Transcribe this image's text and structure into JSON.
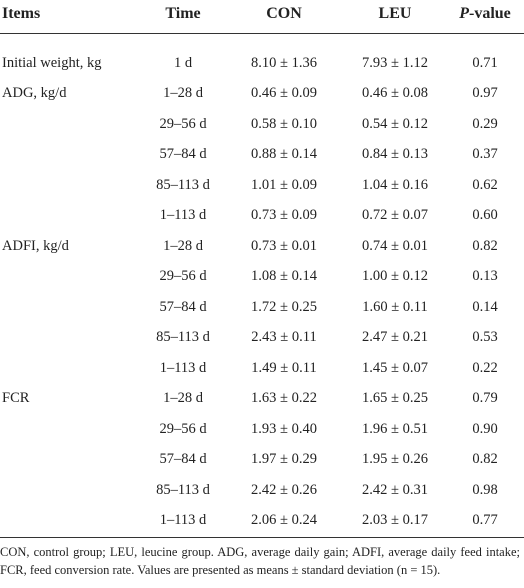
{
  "table": {
    "columns": [
      "Items",
      "Time",
      "CON",
      "LEU",
      {
        "italic": "P",
        "rest": "-value"
      }
    ],
    "groups": [
      {
        "label": "Initial weight, kg",
        "rows": [
          [
            "1 d",
            "8.10 ± 1.36",
            "7.93 ± 1.12",
            "0.71"
          ]
        ]
      },
      {
        "label": "ADG, kg/d",
        "rows": [
          [
            "1–28 d",
            "0.46 ± 0.09",
            "0.46 ± 0.08",
            "0.97"
          ],
          [
            "29–56 d",
            "0.58 ± 0.10",
            "0.54 ± 0.12",
            "0.29"
          ],
          [
            "57–84 d",
            "0.88 ± 0.14",
            "0.84 ± 0.13",
            "0.37"
          ],
          [
            "85–113 d",
            "1.01 ± 0.09",
            "1.04 ± 0.16",
            "0.62"
          ],
          [
            "1–113 d",
            "0.73 ± 0.09",
            "0.72 ± 0.07",
            "0.60"
          ]
        ]
      },
      {
        "label": "ADFI, kg/d",
        "rows": [
          [
            "1–28 d",
            "0.73 ± 0.01",
            "0.74 ± 0.01",
            "0.82"
          ],
          [
            "29–56 d",
            "1.08 ± 0.14",
            "1.00 ± 0.12",
            "0.13"
          ],
          [
            "57–84 d",
            "1.72 ± 0.25",
            "1.60 ± 0.11",
            "0.14"
          ],
          [
            "85–113 d",
            "2.43 ± 0.11",
            "2.47 ± 0.21",
            "0.53"
          ],
          [
            "1–113 d",
            "1.49 ± 0.11",
            "1.45 ± 0.07",
            "0.22"
          ]
        ]
      },
      {
        "label": "FCR",
        "rows": [
          [
            "1–28 d",
            "1.63 ± 0.22",
            "1.65 ± 0.25",
            "0.79"
          ],
          [
            "29–56 d",
            "1.93 ± 0.40",
            "1.96 ± 0.51",
            "0.90"
          ],
          [
            "57–84 d",
            "1.97 ± 0.29",
            "1.95 ± 0.26",
            "0.82"
          ],
          [
            "85–113 d",
            "2.42 ± 0.26",
            "2.42 ± 0.31",
            "0.98"
          ],
          [
            "1–113 d",
            "2.06 ± 0.24",
            "2.03 ± 0.17",
            "0.77"
          ]
        ]
      }
    ],
    "footnote": "CON, control group; LEU, leucine group. ADG, average daily gain; ADFI, average daily feed intake; FCR, feed conversion rate. Values are presented as means ± standard deviation (n = 15)."
  }
}
